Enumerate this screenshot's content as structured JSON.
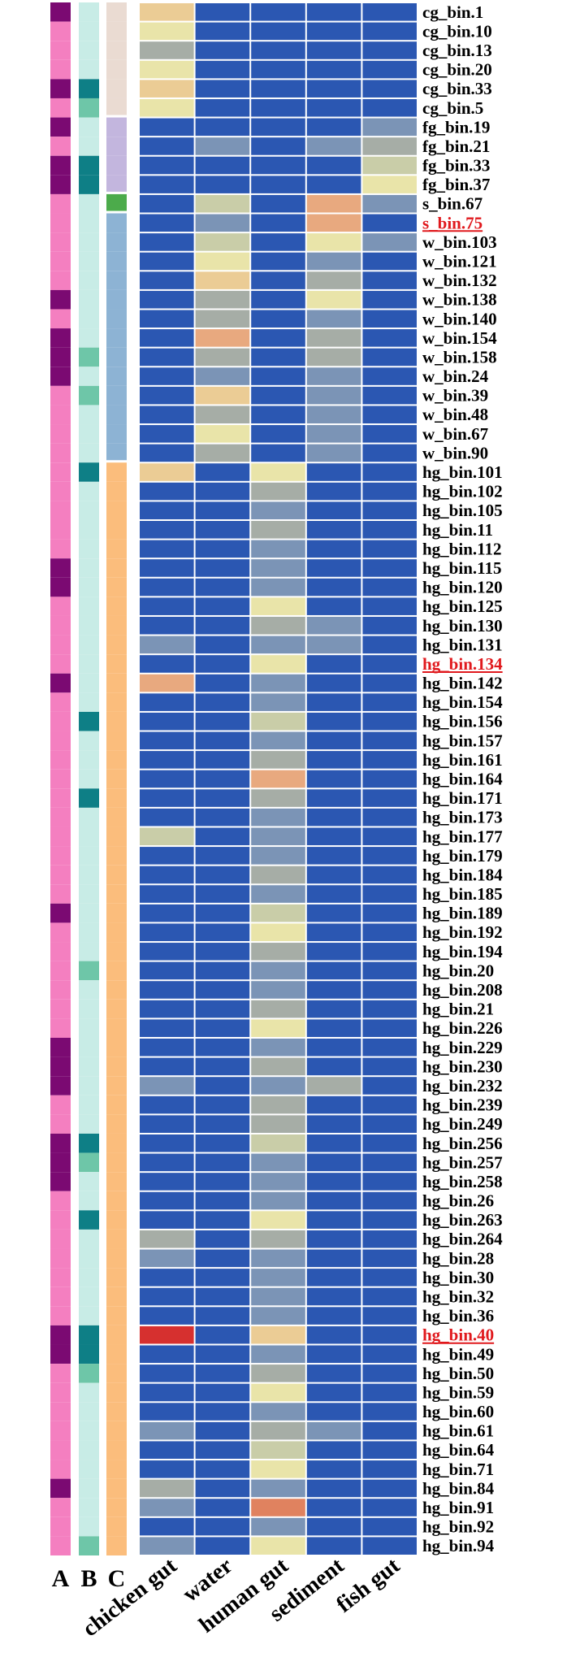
{
  "chart_data": {
    "type": "heatmap",
    "columns": [
      "chicken gut",
      "water",
      "human gut",
      "sediment",
      "fish gut"
    ],
    "annotation_track_labels": [
      "A",
      "B",
      "C"
    ],
    "colors": {
      "A": [
        "#f47fc0",
        "#7b0a72"
      ],
      "B": [
        "#c8ece6",
        "#6ec6a8",
        "#0e7f86"
      ],
      "C": [
        "#eadbd2",
        "#c3b6de",
        "#4cab4b",
        "#8db3d4",
        "#fbbd7c"
      ],
      "scale": [
        "#2b57b2",
        "#7b94b6",
        "#a6ada6",
        "#c9cda8",
        "#e9e4a9",
        "#ebcc95",
        "#e8a97f",
        "#e0825f",
        "#d6302f"
      ],
      "highlight": "#e0191d"
    },
    "rows": [
      {
        "label": "cg_bin.1",
        "A": 1,
        "B": 0,
        "C": 0,
        "values": [
          5,
          0,
          0,
          0,
          0
        ]
      },
      {
        "label": "cg_bin.10",
        "A": 0,
        "B": 0,
        "C": 0,
        "values": [
          4,
          0,
          0,
          0,
          0
        ]
      },
      {
        "label": "cg_bin.13",
        "A": 0,
        "B": 0,
        "C": 0,
        "values": [
          2,
          0,
          0,
          0,
          0
        ]
      },
      {
        "label": "cg_bin.20",
        "A": 0,
        "B": 0,
        "C": 0,
        "values": [
          4,
          0,
          0,
          0,
          0
        ]
      },
      {
        "label": "cg_bin.33",
        "A": 1,
        "B": 2,
        "C": 0,
        "values": [
          5,
          0,
          0,
          0,
          0
        ]
      },
      {
        "label": "cg_bin.5",
        "A": 0,
        "B": 1,
        "C": 0,
        "values": [
          4,
          0,
          0,
          0,
          0
        ]
      },
      {
        "label": "fg_bin.19",
        "A": 1,
        "B": 0,
        "C": 1,
        "values": [
          0,
          0,
          0,
          0,
          1
        ]
      },
      {
        "label": "fg_bin.21",
        "A": 0,
        "B": 0,
        "C": 1,
        "values": [
          0,
          1,
          0,
          1,
          2
        ]
      },
      {
        "label": "fg_bin.33",
        "A": 1,
        "B": 2,
        "C": 1,
        "values": [
          0,
          0,
          0,
          0,
          3
        ]
      },
      {
        "label": "fg_bin.37",
        "A": 1,
        "B": 2,
        "C": 1,
        "values": [
          0,
          0,
          0,
          0,
          4
        ]
      },
      {
        "label": "s_bin.67",
        "A": 0,
        "B": 0,
        "C": 2,
        "values": [
          0,
          3,
          0,
          6,
          1
        ]
      },
      {
        "label": "s_bin.75",
        "A": 0,
        "B": 0,
        "C": 3,
        "values": [
          0,
          1,
          0,
          6,
          0
        ],
        "highlight": true
      },
      {
        "label": "w_bin.103",
        "A": 0,
        "B": 0,
        "C": 3,
        "values": [
          0,
          3,
          0,
          4,
          1
        ]
      },
      {
        "label": "w_bin.121",
        "A": 0,
        "B": 0,
        "C": 3,
        "values": [
          0,
          4,
          0,
          1,
          0
        ]
      },
      {
        "label": "w_bin.132",
        "A": 0,
        "B": 0,
        "C": 3,
        "values": [
          0,
          5,
          0,
          2,
          0
        ]
      },
      {
        "label": "w_bin.138",
        "A": 1,
        "B": 0,
        "C": 3,
        "values": [
          0,
          2,
          0,
          4,
          0
        ]
      },
      {
        "label": "w_bin.140",
        "A": 0,
        "B": 0,
        "C": 3,
        "values": [
          0,
          2,
          0,
          1,
          0
        ]
      },
      {
        "label": "w_bin.154",
        "A": 1,
        "B": 0,
        "C": 3,
        "values": [
          0,
          6,
          0,
          2,
          0
        ]
      },
      {
        "label": "w_bin.158",
        "A": 1,
        "B": 1,
        "C": 3,
        "values": [
          0,
          2,
          0,
          2,
          0
        ]
      },
      {
        "label": "w_bin.24",
        "A": 1,
        "B": 0,
        "C": 3,
        "values": [
          0,
          1,
          0,
          1,
          0
        ]
      },
      {
        "label": "w_bin.39",
        "A": 0,
        "B": 1,
        "C": 3,
        "values": [
          0,
          5,
          0,
          1,
          0
        ]
      },
      {
        "label": "w_bin.48",
        "A": 0,
        "B": 0,
        "C": 3,
        "values": [
          0,
          2,
          0,
          1,
          0
        ]
      },
      {
        "label": "w_bin.67",
        "A": 0,
        "B": 0,
        "C": 3,
        "values": [
          0,
          4,
          0,
          1,
          0
        ]
      },
      {
        "label": "w_bin.90",
        "A": 0,
        "B": 0,
        "C": 3,
        "values": [
          0,
          2,
          0,
          1,
          0
        ]
      },
      {
        "label": "hg_bin.101",
        "A": 0,
        "B": 2,
        "C": 4,
        "values": [
          5,
          0,
          4,
          0,
          0
        ]
      },
      {
        "label": "hg_bin.102",
        "A": 0,
        "B": 0,
        "C": 4,
        "values": [
          0,
          0,
          2,
          0,
          0
        ]
      },
      {
        "label": "hg_bin.105",
        "A": 0,
        "B": 0,
        "C": 4,
        "values": [
          0,
          0,
          1,
          0,
          0
        ]
      },
      {
        "label": "hg_bin.11",
        "A": 0,
        "B": 0,
        "C": 4,
        "values": [
          0,
          0,
          2,
          0,
          0
        ]
      },
      {
        "label": "hg_bin.112",
        "A": 0,
        "B": 0,
        "C": 4,
        "values": [
          0,
          0,
          1,
          0,
          0
        ]
      },
      {
        "label": "hg_bin.115",
        "A": 1,
        "B": 0,
        "C": 4,
        "values": [
          0,
          0,
          1,
          0,
          0
        ]
      },
      {
        "label": "hg_bin.120",
        "A": 1,
        "B": 0,
        "C": 4,
        "values": [
          0,
          0,
          1,
          0,
          0
        ]
      },
      {
        "label": "hg_bin.125",
        "A": 0,
        "B": 0,
        "C": 4,
        "values": [
          0,
          0,
          4,
          0,
          0
        ]
      },
      {
        "label": "hg_bin.130",
        "A": 0,
        "B": 0,
        "C": 4,
        "values": [
          0,
          0,
          2,
          1,
          0
        ]
      },
      {
        "label": "hg_bin.131",
        "A": 0,
        "B": 0,
        "C": 4,
        "values": [
          1,
          0,
          1,
          1,
          0
        ]
      },
      {
        "label": "hg_bin.134",
        "A": 0,
        "B": 0,
        "C": 4,
        "values": [
          0,
          0,
          4,
          0,
          0
        ],
        "highlight": true
      },
      {
        "label": "hg_bin.142",
        "A": 1,
        "B": 0,
        "C": 4,
        "values": [
          6,
          0,
          1,
          0,
          0
        ]
      },
      {
        "label": "hg_bin.154",
        "A": 0,
        "B": 0,
        "C": 4,
        "values": [
          0,
          0,
          1,
          0,
          0
        ]
      },
      {
        "label": "hg_bin.156",
        "A": 0,
        "B": 2,
        "C": 4,
        "values": [
          0,
          0,
          3,
          0,
          0
        ]
      },
      {
        "label": "hg_bin.157",
        "A": 0,
        "B": 0,
        "C": 4,
        "values": [
          0,
          0,
          1,
          0,
          0
        ]
      },
      {
        "label": "hg_bin.161",
        "A": 0,
        "B": 0,
        "C": 4,
        "values": [
          0,
          0,
          2,
          0,
          0
        ]
      },
      {
        "label": "hg_bin.164",
        "A": 0,
        "B": 0,
        "C": 4,
        "values": [
          0,
          0,
          6,
          0,
          0
        ]
      },
      {
        "label": "hg_bin.171",
        "A": 0,
        "B": 2,
        "C": 4,
        "values": [
          0,
          0,
          2,
          0,
          0
        ]
      },
      {
        "label": "hg_bin.173",
        "A": 0,
        "B": 0,
        "C": 4,
        "values": [
          0,
          0,
          1,
          0,
          0
        ]
      },
      {
        "label": "hg_bin.177",
        "A": 0,
        "B": 0,
        "C": 4,
        "values": [
          3,
          0,
          1,
          0,
          0
        ]
      },
      {
        "label": "hg_bin.179",
        "A": 0,
        "B": 0,
        "C": 4,
        "values": [
          0,
          0,
          1,
          0,
          0
        ]
      },
      {
        "label": "hg_bin.184",
        "A": 0,
        "B": 0,
        "C": 4,
        "values": [
          0,
          0,
          2,
          0,
          0
        ]
      },
      {
        "label": "hg_bin.185",
        "A": 0,
        "B": 0,
        "C": 4,
        "values": [
          0,
          0,
          1,
          0,
          0
        ]
      },
      {
        "label": "hg_bin.189",
        "A": 1,
        "B": 0,
        "C": 4,
        "values": [
          0,
          0,
          3,
          0,
          0
        ]
      },
      {
        "label": "hg_bin.192",
        "A": 0,
        "B": 0,
        "C": 4,
        "values": [
          0,
          0,
          4,
          0,
          0
        ]
      },
      {
        "label": "hg_bin.194",
        "A": 0,
        "B": 0,
        "C": 4,
        "values": [
          0,
          0,
          2,
          0,
          0
        ]
      },
      {
        "label": "hg_bin.20",
        "A": 0,
        "B": 1,
        "C": 4,
        "values": [
          0,
          0,
          1,
          0,
          0
        ]
      },
      {
        "label": "hg_bin.208",
        "A": 0,
        "B": 0,
        "C": 4,
        "values": [
          0,
          0,
          1,
          0,
          0
        ]
      },
      {
        "label": "hg_bin.21",
        "A": 0,
        "B": 0,
        "C": 4,
        "values": [
          0,
          0,
          2,
          0,
          0
        ]
      },
      {
        "label": "hg_bin.226",
        "A": 0,
        "B": 0,
        "C": 4,
        "values": [
          0,
          0,
          4,
          0,
          0
        ]
      },
      {
        "label": "hg_bin.229",
        "A": 1,
        "B": 0,
        "C": 4,
        "values": [
          0,
          0,
          1,
          0,
          0
        ]
      },
      {
        "label": "hg_bin.230",
        "A": 1,
        "B": 0,
        "C": 4,
        "values": [
          0,
          0,
          2,
          0,
          0
        ]
      },
      {
        "label": "hg_bin.232",
        "A": 1,
        "B": 0,
        "C": 4,
        "values": [
          1,
          0,
          1,
          2,
          0
        ]
      },
      {
        "label": "hg_bin.239",
        "A": 0,
        "B": 0,
        "C": 4,
        "values": [
          0,
          0,
          2,
          0,
          0
        ]
      },
      {
        "label": "hg_bin.249",
        "A": 0,
        "B": 0,
        "C": 4,
        "values": [
          0,
          0,
          2,
          0,
          0
        ]
      },
      {
        "label": "hg_bin.256",
        "A": 1,
        "B": 2,
        "C": 4,
        "values": [
          0,
          0,
          3,
          0,
          0
        ]
      },
      {
        "label": "hg_bin.257",
        "A": 1,
        "B": 1,
        "C": 4,
        "values": [
          0,
          0,
          1,
          0,
          0
        ]
      },
      {
        "label": "hg_bin.258",
        "A": 1,
        "B": 0,
        "C": 4,
        "values": [
          0,
          0,
          1,
          0,
          0
        ]
      },
      {
        "label": "hg_bin.26",
        "A": 0,
        "B": 0,
        "C": 4,
        "values": [
          0,
          0,
          1,
          0,
          0
        ]
      },
      {
        "label": "hg_bin.263",
        "A": 0,
        "B": 2,
        "C": 4,
        "values": [
          0,
          0,
          4,
          0,
          0
        ]
      },
      {
        "label": "hg_bin.264",
        "A": 0,
        "B": 0,
        "C": 4,
        "values": [
          2,
          0,
          2,
          0,
          0
        ]
      },
      {
        "label": "hg_bin.28",
        "A": 0,
        "B": 0,
        "C": 4,
        "values": [
          1,
          0,
          1,
          0,
          0
        ]
      },
      {
        "label": "hg_bin.30",
        "A": 0,
        "B": 0,
        "C": 4,
        "values": [
          0,
          0,
          1,
          0,
          0
        ]
      },
      {
        "label": "hg_bin.32",
        "A": 0,
        "B": 0,
        "C": 4,
        "values": [
          0,
          0,
          1,
          0,
          0
        ]
      },
      {
        "label": "hg_bin.36",
        "A": 0,
        "B": 0,
        "C": 4,
        "values": [
          0,
          0,
          1,
          0,
          0
        ]
      },
      {
        "label": "hg_bin.40",
        "A": 1,
        "B": 2,
        "C": 4,
        "values": [
          8,
          0,
          5,
          0,
          0
        ],
        "highlight": true
      },
      {
        "label": "hg_bin.49",
        "A": 1,
        "B": 2,
        "C": 4,
        "values": [
          0,
          0,
          1,
          0,
          0
        ]
      },
      {
        "label": "hg_bin.50",
        "A": 0,
        "B": 1,
        "C": 4,
        "values": [
          0,
          0,
          2,
          0,
          0
        ]
      },
      {
        "label": "hg_bin.59",
        "A": 0,
        "B": 0,
        "C": 4,
        "values": [
          0,
          0,
          4,
          0,
          0
        ]
      },
      {
        "label": "hg_bin.60",
        "A": 0,
        "B": 0,
        "C": 4,
        "values": [
          0,
          0,
          1,
          0,
          0
        ]
      },
      {
        "label": "hg_bin.61",
        "A": 0,
        "B": 0,
        "C": 4,
        "values": [
          1,
          0,
          2,
          1,
          0
        ]
      },
      {
        "label": "hg_bin.64",
        "A": 0,
        "B": 0,
        "C": 4,
        "values": [
          0,
          0,
          3,
          0,
          0
        ]
      },
      {
        "label": "hg_bin.71",
        "A": 0,
        "B": 0,
        "C": 4,
        "values": [
          0,
          0,
          4,
          0,
          0
        ]
      },
      {
        "label": "hg_bin.84",
        "A": 1,
        "B": 0,
        "C": 4,
        "values": [
          2,
          0,
          1,
          0,
          0
        ]
      },
      {
        "label": "hg_bin.91",
        "A": 0,
        "B": 0,
        "C": 4,
        "values": [
          1,
          0,
          7,
          0,
          0
        ]
      },
      {
        "label": "hg_bin.92",
        "A": 0,
        "B": 0,
        "C": 4,
        "values": [
          0,
          0,
          1,
          0,
          0
        ]
      },
      {
        "label": "hg_bin.94",
        "A": 0,
        "B": 1,
        "C": 4,
        "values": [
          1,
          0,
          4,
          0,
          0
        ]
      }
    ]
  }
}
